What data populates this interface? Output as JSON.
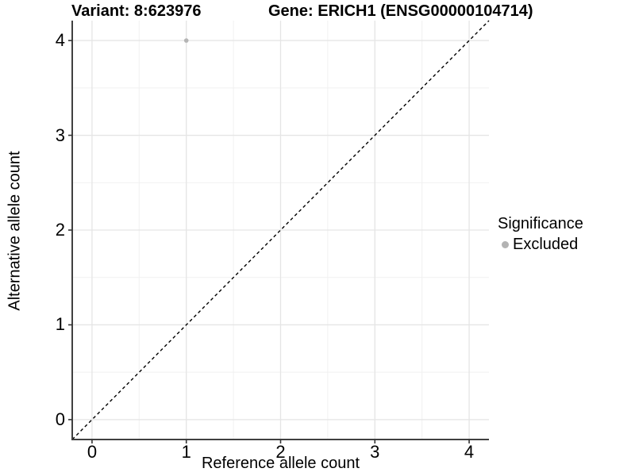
{
  "chart_data": {
    "type": "scatter",
    "title_variant": "Variant: 8:623976",
    "title_gene": "Gene: ERICH1 (ENSG00000104714)",
    "xlabel": "Reference allele count",
    "ylabel": "Alternative allele count",
    "xlim": [
      -0.21,
      4.21
    ],
    "ylim": [
      -0.21,
      4.21
    ],
    "xticks": [
      0,
      1,
      2,
      3,
      4
    ],
    "yticks": [
      0,
      1,
      2,
      3,
      4
    ],
    "grid": "major-and-minor",
    "points": [
      {
        "x": 1,
        "y": 4,
        "series": "Excluded"
      }
    ],
    "reference_line": {
      "slope": 1,
      "intercept": 0,
      "style": "dashed"
    },
    "legend": {
      "title": "Significance",
      "position": "right",
      "items": [
        {
          "label": "Excluded",
          "color": "#b3b3b3"
        }
      ]
    },
    "colors": {
      "background": "#ffffff",
      "point": "#b5b5b5",
      "grid_major": "#e5e5e5",
      "grid_minor": "#f1f1f1",
      "axis_line": "#404040",
      "tick_mark": "#333333",
      "reference_line": "#000000",
      "text": "#000000"
    }
  }
}
